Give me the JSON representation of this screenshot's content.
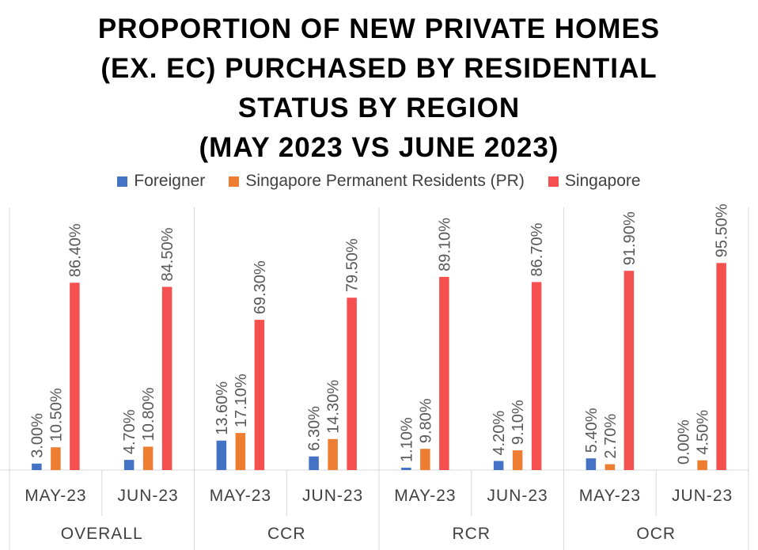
{
  "title_lines": [
    "PROPORTION OF NEW PRIVATE HOMES",
    "(EX. EC) PURCHASED BY RESIDENTIAL",
    "STATUS BY REGION",
    "(MAY 2023 VS JUNE 2023)"
  ],
  "colors": {
    "Foreigner": "#4472c4",
    "Singapore Permanent Residents (PR)": "#ed7d31",
    "Singapore": "#f55050"
  },
  "chart_data": {
    "type": "bar",
    "title": "PROPORTION OF NEW PRIVATE HOMES (EX. EC) PURCHASED BY RESIDENTIAL STATUS BY REGION (MAY 2023 VS JUNE 2023)",
    "legend": [
      "Foreigner",
      "Singapore Permanent Residents (PR)",
      "Singapore"
    ],
    "legend_position": "top",
    "regions": [
      "OVERALL",
      "CCR",
      "RCR",
      "OCR"
    ],
    "months": [
      "MAY-23",
      "JUN-23"
    ],
    "categories": [
      {
        "region": "OVERALL",
        "month": "MAY-23"
      },
      {
        "region": "OVERALL",
        "month": "JUN-23"
      },
      {
        "region": "CCR",
        "month": "MAY-23"
      },
      {
        "region": "CCR",
        "month": "JUN-23"
      },
      {
        "region": "RCR",
        "month": "MAY-23"
      },
      {
        "region": "RCR",
        "month": "JUN-23"
      },
      {
        "region": "OCR",
        "month": "MAY-23"
      },
      {
        "region": "OCR",
        "month": "JUN-23"
      }
    ],
    "series": [
      {
        "name": "Foreigner",
        "values": [
          3.0,
          4.7,
          13.6,
          6.3,
          1.1,
          4.2,
          5.4,
          0.0
        ],
        "labels": [
          "3.00%",
          "4.70%",
          "13.60%",
          "6.30%",
          "1.10%",
          "4.20%",
          "5.40%",
          "0.00%"
        ]
      },
      {
        "name": "Singapore Permanent Residents (PR)",
        "values": [
          10.5,
          10.8,
          17.1,
          14.3,
          9.8,
          9.1,
          2.7,
          4.5
        ],
        "labels": [
          "10.50%",
          "10.80%",
          "17.10%",
          "14.30%",
          "9.80%",
          "9.10%",
          "2.70%",
          "4.50%"
        ]
      },
      {
        "name": "Singapore",
        "values": [
          86.4,
          84.5,
          69.3,
          79.5,
          89.1,
          86.7,
          91.9,
          95.5
        ],
        "labels": [
          "86.40%",
          "84.50%",
          "69.30%",
          "79.50%",
          "89.10%",
          "86.70%",
          "91.90%",
          "95.50%"
        ]
      }
    ],
    "ylim": [
      0,
      100
    ],
    "grid": false
  }
}
